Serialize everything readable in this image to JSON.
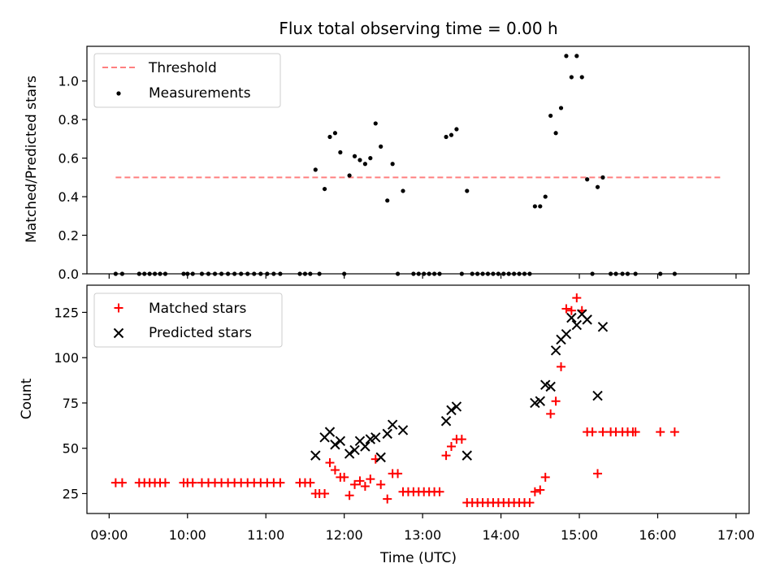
{
  "figure": {
    "title": "Flux total observing time = 0.00 h"
  },
  "chart_data": [
    {
      "type": "scatter",
      "ylabel": "Matched/Predicted stars",
      "xlabel": "",
      "x_is_time": true,
      "xlim": [
        "08:43",
        "17:10"
      ],
      "ylim": [
        0,
        1.18
      ],
      "yticks": [
        "0.0",
        "0.2",
        "0.4",
        "0.6",
        "0.8",
        "1.0"
      ],
      "ytick_values": [
        0,
        0.2,
        0.4,
        0.6,
        0.8,
        1.0
      ],
      "legend": {
        "position": "top-left",
        "entries": [
          "Threshold",
          "Measurements"
        ]
      },
      "threshold": {
        "name": "Threshold",
        "x_start": "09:05",
        "x_end": "16:50",
        "value": 0.5,
        "color": "#ff7f7f"
      },
      "measurements": {
        "name": "Measurements",
        "color": "#000000",
        "points": [
          [
            "09:05",
            0
          ],
          [
            "09:10",
            0
          ],
          [
            "09:23",
            0
          ],
          [
            "09:27",
            0
          ],
          [
            "09:31",
            0
          ],
          [
            "09:35",
            0
          ],
          [
            "09:39",
            0
          ],
          [
            "09:43",
            0
          ],
          [
            "09:57",
            0
          ],
          [
            "10:00",
            0
          ],
          [
            "10:04",
            0
          ],
          [
            "10:11",
            0
          ],
          [
            "10:16",
            0
          ],
          [
            "10:21",
            0
          ],
          [
            "10:26",
            0
          ],
          [
            "10:31",
            0
          ],
          [
            "10:36",
            0
          ],
          [
            "10:41",
            0
          ],
          [
            "10:46",
            0
          ],
          [
            "10:51",
            0
          ],
          [
            "10:56",
            0
          ],
          [
            "11:01",
            0
          ],
          [
            "11:06",
            0
          ],
          [
            "11:11",
            0
          ],
          [
            "11:26",
            0
          ],
          [
            "11:30",
            0
          ],
          [
            "11:34",
            0
          ],
          [
            "11:38",
            0.54
          ],
          [
            "11:41",
            0
          ],
          [
            "11:45",
            0.44
          ],
          [
            "11:49",
            0.71
          ],
          [
            "11:53",
            0.73
          ],
          [
            "11:57",
            0.63
          ],
          [
            "12:00",
            0
          ],
          [
            "12:04",
            0.51
          ],
          [
            "12:08",
            0.61
          ],
          [
            "12:12",
            0.59
          ],
          [
            "12:16",
            0.57
          ],
          [
            "12:20",
            0.6
          ],
          [
            "12:24",
            0.78
          ],
          [
            "12:28",
            0.66
          ],
          [
            "12:33",
            0.38
          ],
          [
            "12:37",
            0.57
          ],
          [
            "12:41",
            0
          ],
          [
            "12:45",
            0.43
          ],
          [
            "12:53",
            0
          ],
          [
            "12:57",
            0
          ],
          [
            "13:01",
            0
          ],
          [
            "13:05",
            0
          ],
          [
            "13:09",
            0
          ],
          [
            "13:13",
            0
          ],
          [
            "13:18",
            0.71
          ],
          [
            "13:22",
            0.72
          ],
          [
            "13:26",
            0.75
          ],
          [
            "13:30",
            0
          ],
          [
            "13:34",
            0.43
          ],
          [
            "13:38",
            0
          ],
          [
            "13:42",
            0
          ],
          [
            "13:46",
            0
          ],
          [
            "13:50",
            0
          ],
          [
            "13:54",
            0
          ],
          [
            "13:58",
            0
          ],
          [
            "14:02",
            0
          ],
          [
            "14:06",
            0
          ],
          [
            "14:10",
            0
          ],
          [
            "14:14",
            0
          ],
          [
            "14:18",
            0
          ],
          [
            "14:22",
            0
          ],
          [
            "14:26",
            0.35
          ],
          [
            "14:30",
            0.35
          ],
          [
            "14:34",
            0.4
          ],
          [
            "14:38",
            0.82
          ],
          [
            "14:42",
            0.73
          ],
          [
            "14:46",
            0.86
          ],
          [
            "14:50",
            1.13
          ],
          [
            "14:54",
            1.02
          ],
          [
            "14:58",
            1.13
          ],
          [
            "15:02",
            1.02
          ],
          [
            "15:06",
            0.49
          ],
          [
            "15:10",
            0
          ],
          [
            "15:14",
            0.45
          ],
          [
            "15:18",
            0.5
          ],
          [
            "15:24",
            0
          ],
          [
            "15:28",
            0
          ],
          [
            "15:33",
            0
          ],
          [
            "15:37",
            0
          ],
          [
            "15:43",
            0
          ],
          [
            "16:02",
            0
          ],
          [
            "16:13",
            0
          ]
        ]
      }
    },
    {
      "type": "scatter",
      "ylabel": "Count",
      "xlabel": "Time (UTC)",
      "x_is_time": true,
      "xlim": [
        "08:43",
        "17:10"
      ],
      "ylim": [
        14,
        140
      ],
      "yticks": [
        "25",
        "50",
        "75",
        "100",
        "125"
      ],
      "ytick_values": [
        25,
        50,
        75,
        100,
        125
      ],
      "xticks": [
        "09:00",
        "10:00",
        "11:00",
        "12:00",
        "13:00",
        "14:00",
        "15:00",
        "16:00",
        "17:00"
      ],
      "legend": {
        "position": "top-left",
        "entries": [
          "Matched stars",
          "Predicted stars"
        ]
      },
      "series": [
        {
          "name": "Matched stars",
          "marker": "plus",
          "color": "#ff0000",
          "points": [
            [
              "09:05",
              31
            ],
            [
              "09:10",
              31
            ],
            [
              "09:23",
              31
            ],
            [
              "09:27",
              31
            ],
            [
              "09:31",
              31
            ],
            [
              "09:35",
              31
            ],
            [
              "09:39",
              31
            ],
            [
              "09:43",
              31
            ],
            [
              "09:57",
              31
            ],
            [
              "10:00",
              31
            ],
            [
              "10:04",
              31
            ],
            [
              "10:11",
              31
            ],
            [
              "10:16",
              31
            ],
            [
              "10:21",
              31
            ],
            [
              "10:26",
              31
            ],
            [
              "10:31",
              31
            ],
            [
              "10:36",
              31
            ],
            [
              "10:41",
              31
            ],
            [
              "10:46",
              31
            ],
            [
              "10:51",
              31
            ],
            [
              "10:56",
              31
            ],
            [
              "11:01",
              31
            ],
            [
              "11:06",
              31
            ],
            [
              "11:11",
              31
            ],
            [
              "11:26",
              31
            ],
            [
              "11:30",
              31
            ],
            [
              "11:34",
              31
            ],
            [
              "11:38",
              25
            ],
            [
              "11:41",
              25
            ],
            [
              "11:45",
              25
            ],
            [
              "11:49",
              42
            ],
            [
              "11:53",
              38
            ],
            [
              "11:57",
              34
            ],
            [
              "12:00",
              34
            ],
            [
              "12:04",
              24
            ],
            [
              "12:08",
              30
            ],
            [
              "12:12",
              32
            ],
            [
              "12:16",
              29
            ],
            [
              "12:20",
              33
            ],
            [
              "12:24",
              44
            ],
            [
              "12:28",
              30
            ],
            [
              "12:33",
              22
            ],
            [
              "12:37",
              36
            ],
            [
              "12:41",
              36
            ],
            [
              "12:45",
              26
            ],
            [
              "12:49",
              26
            ],
            [
              "12:53",
              26
            ],
            [
              "12:57",
              26
            ],
            [
              "13:01",
              26
            ],
            [
              "13:05",
              26
            ],
            [
              "13:09",
              26
            ],
            [
              "13:13",
              26
            ],
            [
              "13:18",
              46
            ],
            [
              "13:22",
              51
            ],
            [
              "13:26",
              55
            ],
            [
              "13:30",
              55
            ],
            [
              "13:34",
              20
            ],
            [
              "13:38",
              20
            ],
            [
              "13:42",
              20
            ],
            [
              "13:46",
              20
            ],
            [
              "13:50",
              20
            ],
            [
              "13:54",
              20
            ],
            [
              "13:58",
              20
            ],
            [
              "14:02",
              20
            ],
            [
              "14:06",
              20
            ],
            [
              "14:10",
              20
            ],
            [
              "14:14",
              20
            ],
            [
              "14:18",
              20
            ],
            [
              "14:22",
              20
            ],
            [
              "14:26",
              26
            ],
            [
              "14:30",
              27
            ],
            [
              "14:34",
              34
            ],
            [
              "14:38",
              69
            ],
            [
              "14:42",
              76
            ],
            [
              "14:46",
              95
            ],
            [
              "14:50",
              127
            ],
            [
              "14:54",
              126
            ],
            [
              "14:58",
              133
            ],
            [
              "15:02",
              126
            ],
            [
              "15:06",
              59
            ],
            [
              "15:10",
              59
            ],
            [
              "15:14",
              36
            ],
            [
              "15:18",
              59
            ],
            [
              "15:24",
              59
            ],
            [
              "15:28",
              59
            ],
            [
              "15:33",
              59
            ],
            [
              "15:37",
              59
            ],
            [
              "15:41",
              59
            ],
            [
              "15:43",
              59
            ],
            [
              "16:02",
              59
            ],
            [
              "16:13",
              59
            ]
          ]
        },
        {
          "name": "Predicted stars",
          "marker": "x",
          "color": "#000000",
          "points": [
            [
              "11:38",
              46
            ],
            [
              "11:45",
              56
            ],
            [
              "11:49",
              59
            ],
            [
              "11:53",
              52
            ],
            [
              "11:57",
              54
            ],
            [
              "12:04",
              47
            ],
            [
              "12:08",
              49
            ],
            [
              "12:12",
              54
            ],
            [
              "12:16",
              51
            ],
            [
              "12:20",
              55
            ],
            [
              "12:24",
              56
            ],
            [
              "12:28",
              45
            ],
            [
              "12:33",
              58
            ],
            [
              "12:37",
              63
            ],
            [
              "12:45",
              60
            ],
            [
              "13:18",
              65
            ],
            [
              "13:22",
              71
            ],
            [
              "13:26",
              73
            ],
            [
              "13:34",
              46
            ],
            [
              "14:26",
              75
            ],
            [
              "14:30",
              76
            ],
            [
              "14:34",
              85
            ],
            [
              "14:38",
              84
            ],
            [
              "14:42",
              104
            ],
            [
              "14:46",
              110
            ],
            [
              "14:50",
              113
            ],
            [
              "14:54",
              122
            ],
            [
              "14:58",
              118
            ],
            [
              "15:02",
              124
            ],
            [
              "15:06",
              121
            ],
            [
              "15:14",
              79
            ],
            [
              "15:18",
              117
            ]
          ]
        }
      ]
    }
  ]
}
